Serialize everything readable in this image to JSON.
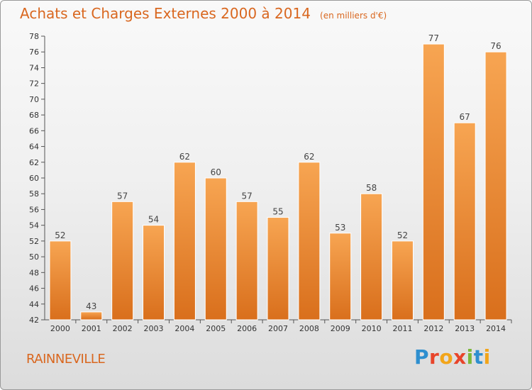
{
  "header": {
    "title": "Achats et Charges Externes 2000 à 2014",
    "subtitle": "(en milliers d'€)"
  },
  "footer": {
    "commune": "RAINNEVILLE",
    "brand": "Proxiti"
  },
  "colors": {
    "title": "#d9671f",
    "bar_top": "#f7a552",
    "bar_bottom": "#d96f1c",
    "axis": "#555555",
    "grid": "#cfcfcf"
  },
  "chart_data": {
    "type": "bar",
    "categories": [
      "2000",
      "2001",
      "2002",
      "2003",
      "2004",
      "2005",
      "2006",
      "2007",
      "2008",
      "2009",
      "2010",
      "2011",
      "2012",
      "2013",
      "2014"
    ],
    "values": [
      52,
      43,
      57,
      54,
      62,
      60,
      57,
      55,
      62,
      53,
      58,
      52,
      77,
      67,
      76
    ],
    "title": "Achats et Charges Externes 2000 à 2014",
    "subtitle": "(en milliers d'€)",
    "ylim": [
      42,
      78
    ],
    "ytick_step": 2,
    "grid": false,
    "data_labels": true
  }
}
